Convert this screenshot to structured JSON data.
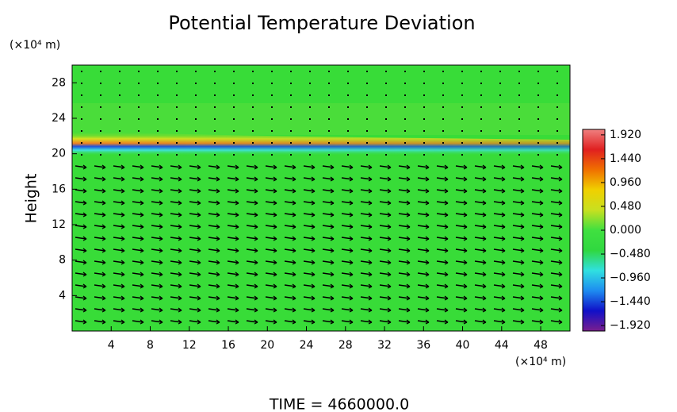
{
  "chart_data": {
    "type": "contour",
    "title": "Potential Temperature Deviation",
    "y_label": "Height",
    "y_unit": "(×10⁴ m)",
    "x_unit": "(×10⁴ m)",
    "footer": "TIME = 4660000.0",
    "xlim": [
      0,
      51
    ],
    "ylim": [
      0,
      30
    ],
    "xticks": [
      4,
      8,
      12,
      16,
      20,
      24,
      28,
      32,
      36,
      40,
      44,
      48
    ],
    "yticks": [
      4,
      8,
      12,
      16,
      20,
      24,
      28
    ],
    "clim": [
      -2.03,
      2.03
    ],
    "colormap": [
      "#7a1e8e",
      "#1010c8",
      "#1e8cf0",
      "#30e0e0",
      "#30d840",
      "#40e040",
      "#c8e020",
      "#f0d000",
      "#f07000",
      "#e02020",
      "#f08080"
    ],
    "cticks": [
      {
        "value": 1.92,
        "label": "1.920"
      },
      {
        "value": 1.44,
        "label": "1.440"
      },
      {
        "value": 0.96,
        "label": "0.960"
      },
      {
        "value": 0.48,
        "label": "0.480"
      },
      {
        "value": 0,
        "label": "0.000"
      },
      {
        "value": -0.48,
        "label": "−0.480"
      },
      {
        "value": -0.96,
        "label": "−0.960"
      },
      {
        "value": -1.44,
        "label": "−1.440"
      },
      {
        "value": -1.92,
        "label": "−1.920"
      }
    ]
  }
}
